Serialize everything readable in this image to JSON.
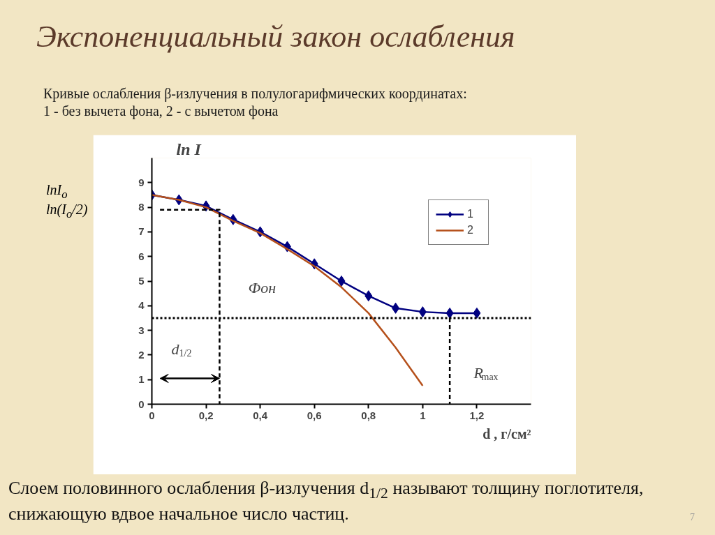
{
  "chart_data": {
    "type": "line",
    "title": "Экспоненциальный закон ослабления",
    "subtitle": "Кривые ослабления β-излучения в полулогарифмических координатах:\n1 - без вычета фона, 2 - с вычетом фона",
    "xlabel": "d , г/см²",
    "ylabel": "ln I",
    "x": [
      0,
      0.1,
      0.2,
      0.3,
      0.4,
      0.5,
      0.6,
      0.7,
      0.8,
      0.9,
      1.0,
      1.1,
      1.2
    ],
    "series": [
      {
        "name": "1",
        "color": "#000080",
        "marker": "diamond",
        "values": [
          8.5,
          8.3,
          8.05,
          7.5,
          7.0,
          6.4,
          5.7,
          5.0,
          4.4,
          3.9,
          3.75,
          3.7,
          3.7
        ]
      },
      {
        "name": "2",
        "color": "#b5501b",
        "marker": "none",
        "x": [
          0,
          0.1,
          0.2,
          0.3,
          0.4,
          0.5,
          0.6,
          0.7,
          0.8,
          0.9,
          1.0
        ],
        "values": [
          8.5,
          8.3,
          8.0,
          7.45,
          6.95,
          6.3,
          5.6,
          4.75,
          3.7,
          2.3,
          0.75
        ]
      },
      {
        "color": "#000000",
        "marker": "none",
        "line_style": "dashed",
        "x": [
          0.03,
          0.25,
          0.25
        ],
        "values": [
          7.9,
          7.9,
          0
        ]
      },
      {
        "color": "#000000",
        "marker": "none",
        "line_style": "dashed",
        "x": [
          1.1,
          1.1
        ],
        "values": [
          3.5,
          0
        ]
      }
    ],
    "ref_lines": [
      {
        "axis": "y",
        "value": 3.5,
        "color": "#000000",
        "line_style": "dotted"
      }
    ],
    "annotations": [
      "Фон",
      "d$_{1/2}$",
      "R$_{max}$",
      "lnI$_{o}$",
      "ln(I$_{o}$/2)",
      "Слоем половинного ослабления β-излучения d$_{1/2}$ называют толщину поглотителя, снижающую вдвое начальное число частиц.",
      "7"
    ],
    "xlim": [
      0,
      1.4
    ],
    "ylim": [
      0,
      10
    ],
    "xticks": [
      0,
      {
        "value": 0.2,
        "label": "0,2"
      },
      {
        "value": 0.4,
        "label": "0,4"
      },
      {
        "value": 0.6,
        "label": "0,6"
      },
      {
        "value": 0.8,
        "label": "0,8"
      },
      1,
      {
        "value": 1.2,
        "label": "1,2"
      }
    ],
    "yticks": [
      0,
      1,
      2,
      3,
      4,
      5,
      6,
      7,
      8,
      9
    ],
    "grid": false,
    "legend": "top right",
    "line_style": "solid"
  }
}
